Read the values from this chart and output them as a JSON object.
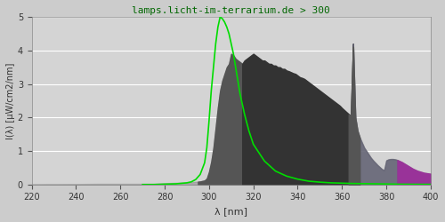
{
  "title": "lamps.licht-im-terrarium.de > 300",
  "xlabel": "λ [nm]",
  "ylabel": "I(λ) [μW/cm2/nm]",
  "xlim": [
    220,
    400
  ],
  "ylim": [
    0.0,
    5.0
  ],
  "yticks": [
    0.0,
    1.0,
    2.0,
    3.0,
    4.0,
    5.0
  ],
  "xticks": [
    220,
    240,
    260,
    280,
    300,
    320,
    340,
    360,
    380,
    400
  ],
  "bg_color": "#e8e8e8",
  "plot_bg_color": "#d8d8d8",
  "title_color": "#006600",
  "green_line_color": "#00cc00",
  "spectrum_dark_color": "#444444",
  "spectrum_mid_color": "#666666",
  "spectrum_purple_color": "#993399",
  "spectrum_violet_color": "#7700aa",
  "spectrum_light_gray_color": "#888888",
  "lambda_nm": [
    220,
    250,
    255,
    260,
    265,
    270,
    275,
    280,
    285,
    290,
    292,
    294,
    296,
    298,
    299,
    300,
    301,
    302,
    303,
    304,
    305,
    306,
    307,
    308,
    309,
    310,
    311,
    312,
    313,
    314,
    315,
    316,
    317,
    318,
    319,
    320,
    321,
    322,
    323,
    324,
    325,
    326,
    327,
    328,
    329,
    330,
    331,
    332,
    333,
    334,
    335,
    336,
    337,
    338,
    339,
    340,
    341,
    342,
    343,
    344,
    345,
    346,
    347,
    348,
    349,
    350,
    351,
    352,
    353,
    354,
    355,
    356,
    357,
    358,
    359,
    360,
    361,
    362,
    363,
    364,
    365,
    366,
    367,
    368,
    369,
    370,
    371,
    372,
    373,
    374,
    375,
    376,
    377,
    378,
    379,
    380,
    381,
    382,
    383,
    384,
    385,
    386,
    387,
    388,
    389,
    390,
    391,
    392,
    393,
    394,
    395,
    396,
    397,
    398,
    399,
    400
  ],
  "spectrum_values": [
    0.0,
    0.02,
    0.02,
    0.02,
    0.02,
    0.02,
    0.02,
    0.04,
    0.05,
    0.06,
    0.07,
    0.08,
    0.09,
    0.12,
    0.18,
    0.38,
    0.68,
    1.1,
    1.7,
    2.3,
    2.8,
    3.1,
    3.3,
    3.5,
    3.6,
    3.9,
    3.85,
    3.75,
    3.7,
    3.65,
    3.6,
    3.7,
    3.75,
    3.8,
    3.85,
    3.9,
    3.85,
    3.8,
    3.75,
    3.7,
    3.7,
    3.65,
    3.6,
    3.6,
    3.55,
    3.55,
    3.5,
    3.5,
    3.45,
    3.45,
    3.4,
    3.38,
    3.35,
    3.32,
    3.3,
    3.25,
    3.2,
    3.18,
    3.15,
    3.1,
    3.05,
    3.0,
    2.95,
    2.9,
    2.85,
    2.8,
    2.75,
    2.7,
    2.65,
    2.6,
    2.55,
    2.5,
    2.45,
    2.4,
    2.35,
    2.28,
    2.22,
    2.16,
    2.1,
    2.05,
    4.2,
    2.0,
    1.6,
    1.4,
    1.25,
    1.1,
    1.0,
    0.9,
    0.8,
    0.72,
    0.65,
    0.58,
    0.52,
    0.46,
    0.42,
    0.72,
    0.75,
    0.76,
    0.76,
    0.75,
    0.73,
    0.7,
    0.67,
    0.63,
    0.59,
    0.55,
    0.51,
    0.47,
    0.44,
    0.41,
    0.39,
    0.37,
    0.35,
    0.34,
    0.33,
    0.32
  ],
  "green_curve_nm": [
    270,
    275,
    280,
    285,
    290,
    292,
    294,
    296,
    298,
    299,
    300,
    301,
    302,
    303,
    304,
    305,
    306,
    307,
    308,
    309,
    310,
    311,
    312,
    313,
    314,
    315,
    316,
    317,
    318,
    319,
    320,
    325,
    330,
    335,
    340,
    345,
    350,
    355,
    360,
    365,
    370,
    375,
    380,
    385,
    390,
    395,
    400
  ],
  "green_curve_values": [
    0.0,
    0.0,
    0.01,
    0.02,
    0.05,
    0.08,
    0.15,
    0.3,
    0.65,
    1.1,
    1.9,
    2.8,
    3.5,
    4.2,
    4.7,
    5.0,
    4.95,
    4.85,
    4.7,
    4.5,
    4.2,
    3.9,
    3.5,
    3.1,
    2.7,
    2.4,
    2.1,
    1.85,
    1.6,
    1.4,
    1.2,
    0.7,
    0.4,
    0.25,
    0.16,
    0.1,
    0.07,
    0.05,
    0.04,
    0.03,
    0.025,
    0.02,
    0.015,
    0.01,
    0.008,
    0.006,
    0.005
  ],
  "uvb_end": 315,
  "uva_end": 380,
  "visible_start": 380
}
